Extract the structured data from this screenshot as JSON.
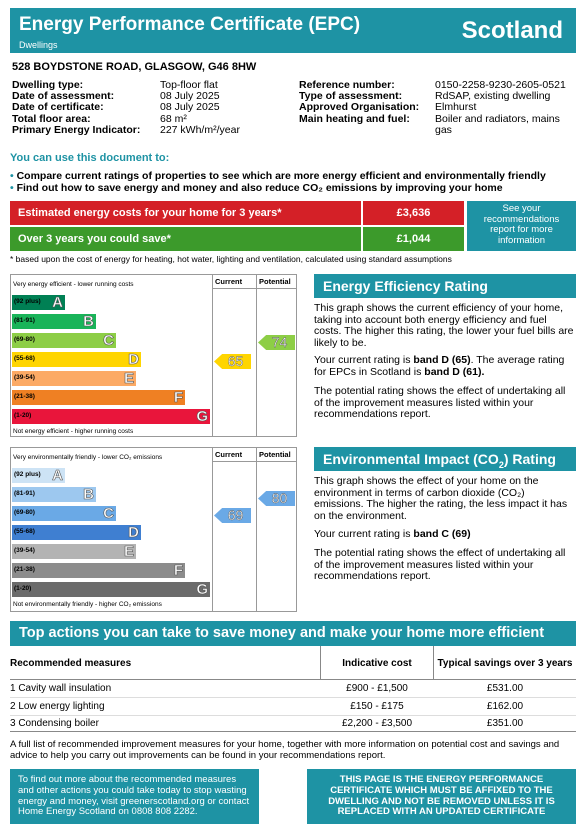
{
  "header": {
    "title": "Energy Performance Certificate (EPC)",
    "subtitle": "Dwellings",
    "country": "Scotland"
  },
  "address": "528 BOYDSTONE ROAD, GLASGOW, G46 8HW",
  "details_left": [
    {
      "k": "Dwelling type:",
      "v": "Top-floor flat"
    },
    {
      "k": "Date of assessment:",
      "v": "08 July 2025"
    },
    {
      "k": "Date of certificate:",
      "v": "08 July 2025"
    },
    {
      "k": "Total floor area:",
      "v": "68 m²"
    },
    {
      "k": "Primary Energy Indicator:",
      "v": "227 kWh/m²/year"
    }
  ],
  "details_right": [
    {
      "k": "Reference number:",
      "v": "0150-2258-9230-2605-0521"
    },
    {
      "k": "Type of assessment:",
      "v": "RdSAP, existing dwelling"
    },
    {
      "k": "Approved Organisation:",
      "v": "Elmhurst"
    },
    {
      "k": "Main heating and fuel:",
      "v": "Boiler and radiators, mains",
      "v2": "gas"
    }
  ],
  "use_heading": "You can use this document to:",
  "bullets": [
    "Compare current ratings of properties to see which are more energy efficient and environmentally friendly",
    "Find out how to save energy and money and also reduce CO₂ emissions by improving your home"
  ],
  "costs": {
    "estimated_label": "Estimated energy costs for your home for 3 years*",
    "estimated_value": "£3,636",
    "save_label": "Over 3 years you could save*",
    "save_value": "£1,044",
    "see_note": "See your recommendations report for more information",
    "footnote": "* based upon the cost of energy for heating, hot water, lighting and ventilation, calculated using standard assumptions"
  },
  "colors": {
    "teal": "#1e93a4",
    "red": "#d42027",
    "green": "#3c9a2b"
  },
  "efficiency_graph": {
    "top_label": "Very energy efficient - lower running costs",
    "bottom_label": "Not energy efficient - higher running costs",
    "col_current": "Current",
    "col_potential": "Potential",
    "bands": [
      {
        "range": "(92 plus)",
        "letter": "A",
        "color": "#008054"
      },
      {
        "range": "(81-91)",
        "letter": "B",
        "color": "#19b459"
      },
      {
        "range": "(69-80)",
        "letter": "C",
        "color": "#8dce46"
      },
      {
        "range": "(55-68)",
        "letter": "D",
        "color": "#ffd500"
      },
      {
        "range": "(39-54)",
        "letter": "E",
        "color": "#fcaa65"
      },
      {
        "range": "(21-38)",
        "letter": "F",
        "color": "#ef8023"
      },
      {
        "range": "(1-20)",
        "letter": "G",
        "color": "#e9153b"
      }
    ],
    "current": {
      "value": "65",
      "band": "D",
      "color": "#ffd500"
    },
    "potential": {
      "value": "74",
      "band": "C",
      "color": "#8dce46"
    }
  },
  "impact_graph": {
    "top_label": "Very environmentally friendly - lower CO₂ emissions",
    "bottom_label": "Not environmentally friendly - higher CO₂ emissions",
    "col_current": "Current",
    "col_potential": "Potential",
    "bands": [
      {
        "range": "(92 plus)",
        "letter": "A",
        "color": "#cde3f5"
      },
      {
        "range": "(81-91)",
        "letter": "B",
        "color": "#9dc8ef"
      },
      {
        "range": "(69-80)",
        "letter": "C",
        "color": "#6aa9e6"
      },
      {
        "range": "(55-68)",
        "letter": "D",
        "color": "#3f7fd1"
      },
      {
        "range": "(39-54)",
        "letter": "E",
        "color": "#b3b3b3"
      },
      {
        "range": "(21-38)",
        "letter": "F",
        "color": "#8c8c8c"
      },
      {
        "range": "(1-20)",
        "letter": "G",
        "color": "#6b6b6b"
      }
    ],
    "current": {
      "value": "69",
      "band": "C",
      "color": "#6aa9e6"
    },
    "potential": {
      "value": "80",
      "band": "C",
      "color": "#6aa9e6"
    }
  },
  "eer": {
    "title": "Energy Efficiency Rating",
    "p1": "This graph shows the current efficiency of your home, taking into account both energy efficiency and fuel costs. The higher this rating, the lower your fuel bills are likely to be.",
    "p2_a": "Your current rating is ",
    "p2_b": "band D (65)",
    "p2_c": ". The average rating for EPCs in Scotland is ",
    "p2_d": "band D (61).",
    "p3": "The potential rating shows the effect of undertaking all of the improvement measures listed within your recommendations report."
  },
  "eir": {
    "title_a": "Environmental Impact (CO",
    "title_sub": "2",
    "title_b": ") Rating",
    "p1": "This graph shows the effect of your home on the environment in terms of carbon dioxide (CO₂) emissions. The higher the rating, the less impact it has on the environment.",
    "p2_a": "Your current rating is ",
    "p2_b": "band C (69)",
    "p3": "The potential rating shows the effect of undertaking all of the improvement measures listed within your recommendations report."
  },
  "actions": {
    "title": "Top actions you can take to save money and make your home more efficient",
    "headers": [
      "Recommended measures",
      "Indicative cost",
      "Typical savings over 3 years"
    ],
    "rows": [
      [
        "1 Cavity wall insulation",
        "£900 - £1,500",
        "£531.00"
      ],
      [
        "2 Low energy lighting",
        "£150 - £175",
        "£162.00"
      ],
      [
        "3 Condensing boiler",
        "£2,200 - £3,500",
        "£351.00"
      ]
    ],
    "note": "A full list of recommended improvement measures for your home, together with more information on potential cost and savings and advice to help you carry out improvements can be found in your recommendations report."
  },
  "footer": {
    "left": "To find out more about the recommended measures and other actions you could take today to stop wasting energy and money, visit greenerscotland.org or contact Home Energy Scotland on 0808 808 2282.",
    "right": "THIS PAGE IS THE ENERGY PERFORMANCE CERTIFICATE WHICH MUST BE AFFIXED TO THE DWELLING AND NOT BE REMOVED UNLESS IT IS REPLACED WITH AN UPDATED CERTIFICATE"
  }
}
